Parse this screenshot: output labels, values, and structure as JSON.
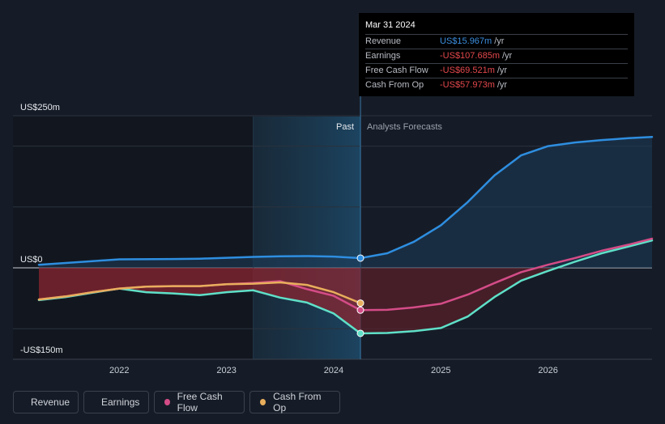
{
  "tooltip": {
    "date": "Mar 31 2024",
    "rows": [
      {
        "label": "Revenue",
        "value": "US$15.967m",
        "unit": "/yr",
        "negative": false
      },
      {
        "label": "Earnings",
        "value": "-US$107.685m",
        "unit": "/yr",
        "negative": true
      },
      {
        "label": "Free Cash Flow",
        "value": "-US$69.521m",
        "unit": "/yr",
        "negative": true
      },
      {
        "label": "Cash From Op",
        "value": "-US$57.973m",
        "unit": "/yr",
        "negative": true
      }
    ]
  },
  "legend": [
    {
      "label": "Revenue",
      "color": "#2e8ee0"
    },
    {
      "label": "Earnings",
      "color": "#5fe0c8"
    },
    {
      "label": "Free Cash Flow",
      "color": "#d44c87"
    },
    {
      "label": "Cash From Op",
      "color": "#e8ae5c"
    }
  ],
  "chart_data": {
    "type": "line",
    "y_tick_labels": [
      "US$250m",
      "US$0",
      "-US$150m"
    ],
    "ylim": [
      -150,
      250
    ],
    "xlim": [
      2021.25,
      2026.97
    ],
    "x_tick_labels": [
      "2022",
      "2023",
      "2024",
      "2025",
      "2026"
    ],
    "x_ticks": [
      2022,
      2023,
      2024,
      2025,
      2026
    ],
    "past_label": "Past",
    "forecast_label": "Analysts Forecasts",
    "divider_x": 2024.25,
    "highlight_start_x": 2023.25,
    "grid": true,
    "series": [
      {
        "name": "Revenue",
        "color": "#2e8ee0",
        "points": [
          [
            2021.25,
            5
          ],
          [
            2021.5,
            8
          ],
          [
            2021.75,
            11
          ],
          [
            2022,
            14
          ],
          [
            2022.5,
            14.5
          ],
          [
            2022.75,
            15
          ],
          [
            2023,
            16.5
          ],
          [
            2023.25,
            18
          ],
          [
            2023.5,
            19
          ],
          [
            2023.75,
            19.3
          ],
          [
            2024,
            18.5
          ],
          [
            2024.25,
            16
          ],
          [
            2024.5,
            24
          ],
          [
            2024.75,
            43
          ],
          [
            2025,
            70
          ],
          [
            2025.25,
            108
          ],
          [
            2025.5,
            152
          ],
          [
            2025.75,
            185
          ],
          [
            2026,
            200
          ],
          [
            2026.25,
            206
          ],
          [
            2026.5,
            210
          ],
          [
            2026.75,
            213
          ],
          [
            2026.97,
            215
          ]
        ]
      },
      {
        "name": "Earnings",
        "color": "#5fe0c8",
        "points": [
          [
            2021.25,
            -53
          ],
          [
            2021.5,
            -48
          ],
          [
            2021.75,
            -41
          ],
          [
            2022,
            -34
          ],
          [
            2022.25,
            -40
          ],
          [
            2022.5,
            -42
          ],
          [
            2022.75,
            -45
          ],
          [
            2023,
            -40
          ],
          [
            2023.25,
            -37
          ],
          [
            2023.5,
            -49
          ],
          [
            2023.75,
            -57
          ],
          [
            2024,
            -75
          ],
          [
            2024.25,
            -107.7
          ],
          [
            2024.5,
            -107
          ],
          [
            2024.75,
            -104
          ],
          [
            2025,
            -99
          ],
          [
            2025.25,
            -80
          ],
          [
            2025.5,
            -48
          ],
          [
            2025.75,
            -21
          ],
          [
            2026,
            -5
          ],
          [
            2026.25,
            10
          ],
          [
            2026.5,
            24
          ],
          [
            2026.75,
            35
          ],
          [
            2026.97,
            45
          ]
        ]
      },
      {
        "name": "Free Cash Flow",
        "color": "#d44c87",
        "points": [
          [
            2021.25,
            -52
          ],
          [
            2021.5,
            -47
          ],
          [
            2021.75,
            -40
          ],
          [
            2022,
            -34
          ],
          [
            2022.25,
            -31
          ],
          [
            2022.5,
            -30
          ],
          [
            2022.75,
            -30
          ],
          [
            2023,
            -27
          ],
          [
            2023.25,
            -25
          ],
          [
            2023.5,
            -22
          ],
          [
            2023.75,
            -35
          ],
          [
            2024,
            -46
          ],
          [
            2024.25,
            -69.5
          ],
          [
            2024.5,
            -69
          ],
          [
            2024.75,
            -65
          ],
          [
            2025,
            -59
          ],
          [
            2025.25,
            -44
          ],
          [
            2025.5,
            -25
          ],
          [
            2025.75,
            -7
          ],
          [
            2026,
            5
          ],
          [
            2026.25,
            16
          ],
          [
            2026.5,
            28
          ],
          [
            2026.75,
            38
          ],
          [
            2026.97,
            48
          ]
        ]
      },
      {
        "name": "Cash From Op",
        "color": "#e8ae5c",
        "points": [
          [
            2021.25,
            -52
          ],
          [
            2021.5,
            -47
          ],
          [
            2021.75,
            -40
          ],
          [
            2022,
            -34
          ],
          [
            2022.25,
            -31
          ],
          [
            2022.5,
            -30
          ],
          [
            2022.75,
            -30
          ],
          [
            2023,
            -27
          ],
          [
            2023.25,
            -26
          ],
          [
            2023.5,
            -24
          ],
          [
            2023.75,
            -28
          ],
          [
            2024,
            -40
          ],
          [
            2024.25,
            -58
          ]
        ]
      }
    ]
  }
}
